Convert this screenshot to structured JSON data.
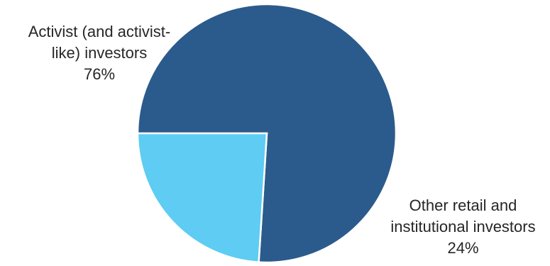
{
  "chart_data": {
    "type": "pie",
    "categories": [
      "Activist (and activist-like) investors",
      "Other retail and institutional investors"
    ],
    "values": [
      76,
      24
    ],
    "percent_labels": [
      "76%",
      "24%"
    ],
    "colors": [
      "#2B5B8C",
      "#5ECCF3"
    ],
    "start_angle_deg": 180,
    "direction": "clockwise",
    "labels": [
      {
        "line1": "Activist (and activist-",
        "line2": "like) investors",
        "pct": "76%"
      },
      {
        "line1": "Other retail and",
        "line2": "institutional investors",
        "pct": "24%"
      }
    ]
  }
}
